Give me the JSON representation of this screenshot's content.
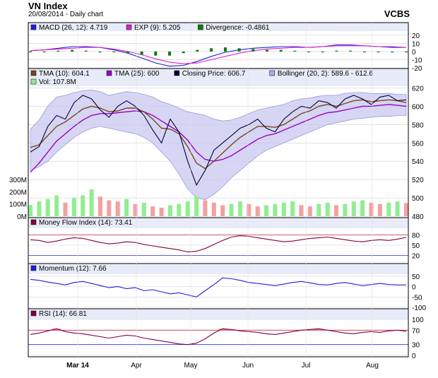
{
  "header": {
    "title": "VN Index",
    "subtitle": "20/08/2014 - Daily chart",
    "source": "VCBS"
  },
  "chart_data": [
    {
      "type": "line",
      "panel": "macd",
      "legend": [
        {
          "label": "MACD (26, 12): 4.719",
          "color": "#1e1edc"
        },
        {
          "label": "EXP (9): 5.205",
          "color": "#e020c8"
        },
        {
          "label": "Divergence: -0.4861",
          "color": "#008000"
        }
      ],
      "y_ticks": [
        "20",
        "10",
        "0",
        "-10",
        "-20"
      ],
      "ylim": [
        -20,
        25
      ],
      "series": [
        {
          "name": "MACD (26, 12): 4.719",
          "style": "line",
          "color": "#1e1edc",
          "values": [
            1,
            2,
            4,
            6,
            6,
            5,
            2,
            -2,
            -8,
            -14,
            -18,
            -17,
            -12,
            -6,
            -1,
            2,
            4,
            5,
            6,
            6,
            5,
            6,
            8,
            8,
            7,
            6,
            5,
            5
          ]
        },
        {
          "name": "EXP (9): 5.205",
          "style": "line",
          "color": "#e020c8",
          "values": [
            1,
            2,
            3,
            4,
            5,
            5,
            3,
            0,
            -4,
            -9,
            -13,
            -15,
            -14,
            -10,
            -6,
            -2,
            1,
            3,
            4,
            5,
            5,
            6,
            7,
            7,
            7,
            6,
            6,
            5
          ]
        },
        {
          "name": "Divergence: -0.4861",
          "style": "bar",
          "color": "#008000",
          "values": [
            0,
            0,
            1,
            2,
            1,
            0,
            -1,
            -2,
            -4,
            -5,
            -5,
            -2,
            2,
            4,
            5,
            4,
            3,
            2,
            2,
            1,
            0,
            0,
            1,
            1,
            0,
            0,
            -1,
            0
          ]
        }
      ]
    },
    {
      "type": "line",
      "panel": "price",
      "legend": [
        {
          "label": "TMA (10): 604.1",
          "color": "#7a4420"
        },
        {
          "label": "TMA (25): 600",
          "color": "#9a00c8"
        },
        {
          "label": "Closing Price: 606.7",
          "color": "#000033"
        },
        {
          "label": "Bollinger (20, 2): 589.6 - 612.6",
          "color": "#aaaaf0"
        },
        {
          "label": "Vol: 107.8M",
          "color": "#90ee90"
        }
      ],
      "y_ticks": [
        "620",
        "600",
        "580",
        "560",
        "540",
        "520",
        "500",
        "480"
      ],
      "ylim": [
        480,
        625
      ],
      "volume_ticks": [
        "300M",
        "200M",
        "100M",
        "0M"
      ],
      "volume_ylim": [
        0,
        300
      ],
      "series": [
        {
          "name": "Closing Price: 606.7",
          "color": "#000033",
          "values": [
            550,
            556,
            578,
            590,
            586,
            604,
            612,
            608,
            596,
            588,
            600,
            606,
            600,
            590,
            574,
            560,
            586,
            572,
            540,
            514,
            530,
            552,
            560,
            568,
            576,
            580,
            586,
            576,
            572,
            586,
            594,
            600,
            598,
            606,
            604,
            598,
            608,
            612,
            608,
            602,
            610,
            612,
            606,
            607
          ]
        },
        {
          "name": "TMA (10): 604.1",
          "color": "#7a4420",
          "values": [
            555,
            558,
            568,
            578,
            583,
            590,
            597,
            600,
            598,
            594,
            595,
            598,
            598,
            594,
            586,
            576,
            575,
            570,
            556,
            538,
            532,
            540,
            549,
            558,
            566,
            572,
            578,
            578,
            577,
            580,
            586,
            592,
            595,
            600,
            602,
            600,
            603,
            606,
            607,
            605,
            606,
            607,
            606,
            604
          ]
        },
        {
          "name": "TMA (25): 600",
          "color": "#9a00c8",
          "values": [
            528,
            538,
            550,
            562,
            570,
            578,
            585,
            590,
            592,
            592,
            593,
            594,
            595,
            594,
            590,
            584,
            578,
            572,
            563,
            550,
            542,
            540,
            542,
            546,
            552,
            558,
            564,
            568,
            570,
            574,
            578,
            582,
            586,
            590,
            593,
            594,
            596,
            598,
            600,
            600,
            601,
            602,
            601,
            600
          ]
        },
        {
          "name": "Bollinger upper",
          "color": "#aaaaf0",
          "values": [
            575,
            585,
            600,
            610,
            612,
            615,
            617,
            618,
            616,
            612,
            614,
            616,
            615,
            613,
            610,
            605,
            602,
            598,
            594,
            592,
            590,
            586,
            584,
            585,
            588,
            592,
            596,
            598,
            600,
            602,
            606,
            608,
            609,
            611,
            612,
            612,
            614,
            615,
            615,
            614,
            614,
            614,
            613,
            613
          ]
        },
        {
          "name": "Bollinger lower",
          "color": "#aaaaf0",
          "values": [
            530,
            534,
            540,
            550,
            558,
            566,
            572,
            576,
            578,
            576,
            574,
            572,
            570,
            566,
            560,
            550,
            540,
            526,
            510,
            500,
            498,
            504,
            512,
            522,
            530,
            538,
            546,
            552,
            556,
            560,
            564,
            568,
            572,
            576,
            580,
            582,
            584,
            586,
            587,
            588,
            589,
            589,
            590,
            590
          ]
        },
        {
          "name": "Vol: 107.8M",
          "style": "bar",
          "color": "#90ee90",
          "values": [
            90,
            120,
            140,
            170,
            110,
            150,
            170,
            220,
            160,
            130,
            120,
            140,
            100,
            110,
            80,
            70,
            90,
            100,
            120,
            160,
            130,
            110,
            90,
            100,
            120,
            100,
            80,
            90,
            100,
            110,
            120,
            90,
            80,
            100,
            110,
            90,
            100,
            120,
            130,
            110,
            100,
            110,
            120,
            108
          ]
        }
      ]
    },
    {
      "type": "line",
      "panel": "mfi",
      "legend": [
        {
          "label": "Money Flow Index (14): 73.41",
          "color": "#800040"
        }
      ],
      "y_ticks": [
        "80",
        "50",
        "20"
      ],
      "ylim": [
        0,
        100
      ],
      "reference_lines": [
        80,
        20
      ],
      "series": [
        {
          "name": "Money Flow Index (14): 73.41",
          "color": "#800040",
          "values": [
            66,
            64,
            58,
            62,
            68,
            72,
            70,
            64,
            58,
            54,
            56,
            60,
            58,
            52,
            48,
            44,
            40,
            36,
            30,
            32,
            40,
            52,
            64,
            74,
            78,
            76,
            72,
            68,
            64,
            60,
            62,
            66,
            70,
            72,
            74,
            70,
            66,
            62,
            60,
            64,
            66,
            64,
            68,
            73
          ]
        }
      ]
    },
    {
      "type": "line",
      "panel": "momentum",
      "legend": [
        {
          "label": "Momentum (12): 7.66",
          "color": "#1e1edc"
        }
      ],
      "y_ticks": [
        "50",
        "0",
        "-50",
        "-100"
      ],
      "ylim": [
        -100,
        60
      ],
      "series": [
        {
          "name": "Momentum (12): 7.66",
          "color": "#1e1edc",
          "values": [
            35,
            30,
            22,
            15,
            8,
            20,
            25,
            15,
            5,
            -5,
            0,
            -10,
            -5,
            -20,
            -15,
            -25,
            -35,
            -30,
            -40,
            -50,
            -20,
            10,
            42,
            38,
            30,
            20,
            15,
            10,
            5,
            12,
            20,
            25,
            18,
            10,
            8,
            15,
            20,
            12,
            5,
            10,
            15,
            10,
            8,
            8
          ]
        }
      ]
    },
    {
      "type": "line",
      "panel": "rsi",
      "legend": [
        {
          "label": "RSI (14): 66.81",
          "color": "#800040"
        }
      ],
      "y_ticks": [
        "100",
        "70",
        "30",
        "0"
      ],
      "ylim": [
        0,
        100
      ],
      "reference_lines": [
        70,
        30
      ],
      "series": [
        {
          "name": "RSI (14): 66.81",
          "color": "#800040",
          "values": [
            58,
            62,
            68,
            74,
            66,
            62,
            60,
            56,
            52,
            48,
            52,
            56,
            54,
            48,
            44,
            40,
            36,
            32,
            30,
            34,
            46,
            62,
            74,
            72,
            68,
            66,
            64,
            60,
            58,
            62,
            66,
            70,
            72,
            74,
            70,
            66,
            62,
            60,
            64,
            66,
            64,
            68,
            70,
            67
          ]
        }
      ]
    }
  ],
  "x_axis": {
    "labels": [
      "Mar 14",
      "Apr",
      "May",
      "Jun",
      "Jul",
      "Aug"
    ]
  }
}
